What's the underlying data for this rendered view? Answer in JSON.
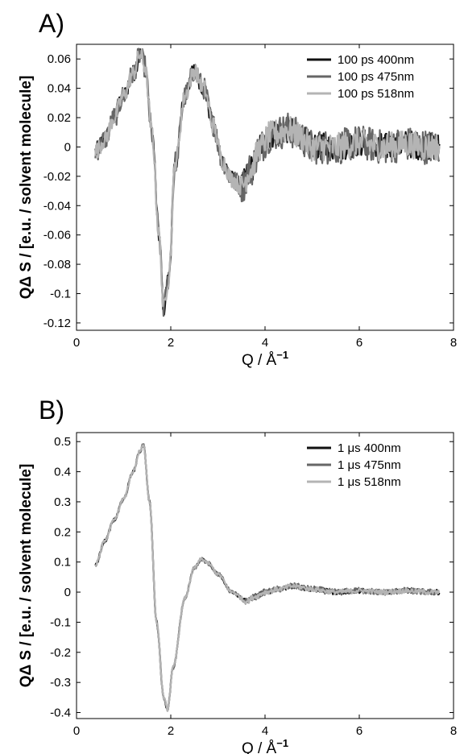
{
  "chart_data": [
    {
      "type": "line",
      "panel_label": "A)",
      "xlabel": "Q / Å",
      "xlabel_sup": "−1",
      "ylabel": "QΔ S / [e.u. / solvent molecule]",
      "xlim": [
        0,
        8
      ],
      "ylim": [
        -0.125,
        0.07
      ],
      "xticks": [
        0,
        2,
        4,
        6,
        8
      ],
      "yticks": [
        -0.12,
        -0.1,
        -0.08,
        -0.06,
        -0.04,
        -0.02,
        0,
        0.02,
        0.04,
        0.06
      ],
      "yticklabels": [
        "-0.12",
        "-0.1",
        "-0.08",
        "-0.06",
        "-0.04",
        "-0.02",
        "0",
        "0.02",
        "0.04",
        "0.06"
      ],
      "legend_position": "top-right",
      "noise": 0.006,
      "series": [
        {
          "name": "100 ps 400nm",
          "color": "#111111"
        },
        {
          "name": "100 ps 475nm",
          "color": "#666666"
        },
        {
          "name": "100 ps 518nm",
          "color": "#b4b4b4"
        }
      ],
      "x": [
        0.4,
        0.6,
        0.8,
        1.0,
        1.2,
        1.35,
        1.45,
        1.6,
        1.75,
        1.85,
        1.95,
        2.1,
        2.3,
        2.5,
        2.7,
        2.9,
        3.1,
        3.3,
        3.5,
        3.7,
        3.9,
        4.1,
        4.3,
        4.5,
        4.7,
        5.0,
        5.5,
        6.0,
        6.5,
        7.0,
        7.5,
        7.7
      ],
      "y": [
        -0.003,
        0.005,
        0.02,
        0.035,
        0.05,
        0.063,
        0.055,
        0.01,
        -0.06,
        -0.11,
        -0.09,
        -0.01,
        0.035,
        0.052,
        0.04,
        0.015,
        -0.01,
        -0.022,
        -0.027,
        -0.015,
        0.0,
        0.008,
        0.01,
        0.012,
        0.008,
        0.0,
        0.0,
        0.003,
        0.0,
        0.002,
        0.0,
        0.0
      ]
    },
    {
      "type": "line",
      "panel_label": "B)",
      "xlabel": "Q / Å",
      "xlabel_sup": "−1",
      "ylabel": "QΔ S / [e.u. / solvent molecule]",
      "xlim": [
        0,
        8
      ],
      "ylim": [
        -0.42,
        0.53
      ],
      "xticks": [
        0,
        2,
        4,
        6,
        8
      ],
      "yticks": [
        -0.4,
        -0.3,
        -0.2,
        -0.1,
        0,
        0.1,
        0.2,
        0.3,
        0.4,
        0.5
      ],
      "yticklabels": [
        "-0.4",
        "-0.3",
        "-0.2",
        "-0.1",
        "0",
        "0.1",
        "0.2",
        "0.3",
        "0.4",
        "0.5"
      ],
      "legend_position": "top-right",
      "noise": 0.005,
      "series": [
        {
          "name": "1 μs 400nm",
          "color": "#111111"
        },
        {
          "name": "1 μs 475nm",
          "color": "#666666"
        },
        {
          "name": "1 μs 518nm",
          "color": "#b4b4b4"
        }
      ],
      "x": [
        0.4,
        0.6,
        0.8,
        1.0,
        1.2,
        1.35,
        1.42,
        1.55,
        1.7,
        1.85,
        1.93,
        2.05,
        2.3,
        2.5,
        2.65,
        2.8,
        3.0,
        3.3,
        3.6,
        3.8,
        4.0,
        4.3,
        4.6,
        5.0,
        5.5,
        6.0,
        6.5,
        7.0,
        7.5,
        7.7
      ],
      "y": [
        0.09,
        0.17,
        0.24,
        0.31,
        0.4,
        0.47,
        0.49,
        0.3,
        -0.1,
        -0.35,
        -0.39,
        -0.25,
        -0.02,
        0.08,
        0.11,
        0.095,
        0.06,
        0.0,
        -0.03,
        -0.015,
        0.0,
        0.01,
        0.02,
        0.01,
        0.0,
        0.005,
        0.0,
        0.005,
        0.0,
        0.0
      ]
    }
  ]
}
